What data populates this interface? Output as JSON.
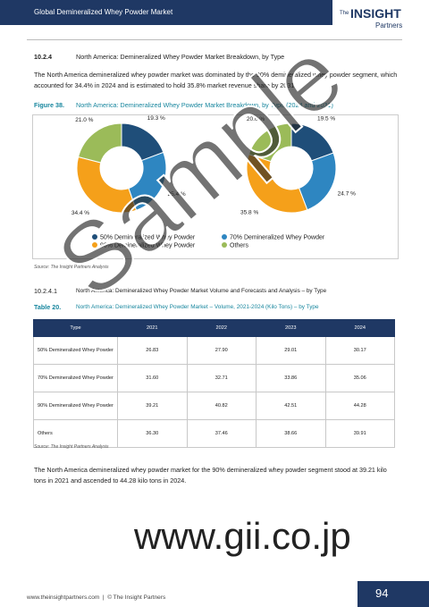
{
  "header": {
    "title": "Global Demineralized Whey Powder Market",
    "logo_the": "The",
    "logo_main": "INSIGHT",
    "logo_sub": "Partners"
  },
  "section": {
    "number": "10.2.4",
    "title": "North America: Demineralized Whey Powder Market Breakdown, by Type",
    "text": "The North America demineralized whey powder market was dominated by the 90% demineralized whey powder segment, which accounted for 34.4% in 2024 and is estimated to hold 35.8% market revenue share by 2031."
  },
  "figure": {
    "label": "Figure 38.",
    "title": "North America: Demineralized Whey Powder Market Breakdown, by Type (2024 and 2031)",
    "source": "Source: The Insight Partners Analysis"
  },
  "chart_data": {
    "type": "donut",
    "categories": [
      "50% Demineralized Whey Powder",
      "70% Demineralized Whey Powder",
      "90% Demineralized Whey Powder",
      "Others"
    ],
    "colors": [
      "#1f4e79",
      "#2e86c1",
      "#f5a01a",
      "#9bbb59"
    ],
    "series": [
      {
        "values": [
          19.3,
          25.4,
          34.4,
          21.0
        ],
        "value_labels": [
          "19.3 %",
          "25.4 %",
          "34.4 %",
          "21.0 %"
        ]
      },
      {
        "values": [
          19.5,
          24.7,
          35.8,
          20.0
        ],
        "value_labels": [
          "19.5 %",
          "24.7 %",
          "35.8 %",
          "20.0 %"
        ]
      }
    ]
  },
  "subsection": {
    "number": "10.2.4.1",
    "title": "North America: Demineralized Whey Powder Market Volume and Forecasts and Analysis – by Type"
  },
  "table": {
    "label": "Table 20.",
    "title": "North America: Demineralized Whey Powder Market – Volume, 2021-2024 (Kilo Tons) – by Type",
    "header": [
      "Type",
      "2021",
      "2022",
      "2023",
      "2024"
    ],
    "rows": [
      [
        "50% Demineralized Whey Powder",
        "26.83",
        "27.90",
        "29.01",
        "30.17"
      ],
      [
        "70% Demineralized Whey Powder",
        "31.60",
        "32.71",
        "33.86",
        "35.06"
      ],
      [
        "90% Demineralized Whey Powder",
        "39.21",
        "40.82",
        "42.51",
        "44.28"
      ],
      [
        "Others",
        "36.30",
        "37.46",
        "38.66",
        "39.91"
      ]
    ],
    "source": "Source: The Insight Partners Analysis"
  },
  "closing_text": "The North America demineralized whey powder market for the 90% demineralized whey powder segment stood at 39.21 kilo tons in 2021 and ascended to 44.28 kilo tons in 2024.",
  "watermark": {
    "text": "Sample",
    "url": "www.gii.co.jp"
  },
  "footer": {
    "text": "www.theinsightpartners.com  |  © The Insight Partners",
    "page": "94"
  }
}
